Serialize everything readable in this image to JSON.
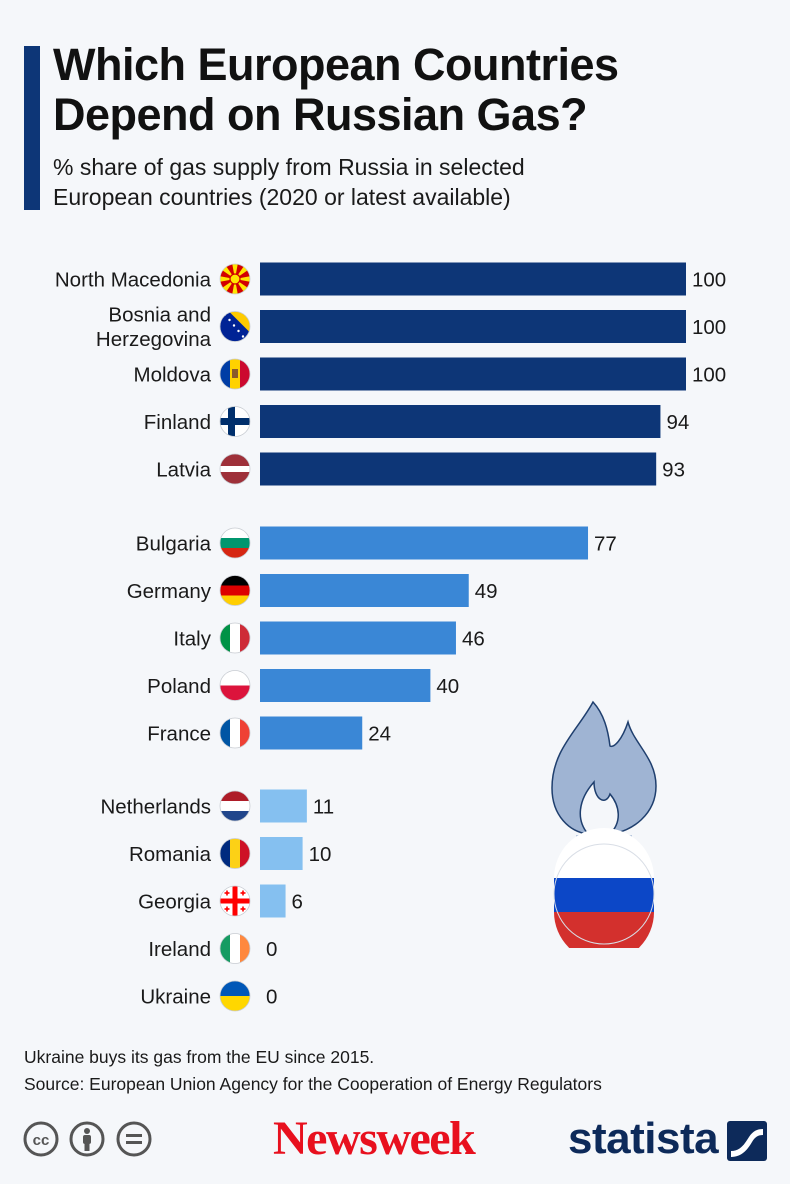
{
  "header": {
    "title": "Which European Countries Depend on Russian Gas?",
    "subtitle": "% share of gas supply from Russia in selected European countries (2020 or latest available)"
  },
  "chart_data": {
    "type": "bar",
    "orientation": "horizontal",
    "title": "Which European Countries Depend on Russian Gas?",
    "subtitle": "% share of gas supply from Russia in selected European countries (2020 or latest available)",
    "xlim": [
      0,
      100
    ],
    "grid": false,
    "legend": "none",
    "groups": [
      {
        "color": "#0d3677",
        "bars": [
          {
            "label": "North Macedonia",
            "value": 100,
            "flag": "north-macedonia-flag"
          },
          {
            "label": "Bosnia and Herzegovina",
            "lines": [
              "Bosnia and",
              "Herzegovina"
            ],
            "value": 100,
            "flag": "bosnia-flag"
          },
          {
            "label": "Moldova",
            "value": 100,
            "flag": "moldova-flag"
          },
          {
            "label": "Finland",
            "value": 94,
            "flag": "finland-flag"
          },
          {
            "label": "Latvia",
            "value": 93,
            "flag": "latvia-flag"
          }
        ]
      },
      {
        "color": "#3a87d6",
        "bars": [
          {
            "label": "Bulgaria",
            "value": 77,
            "flag": "bulgaria-flag"
          },
          {
            "label": "Germany",
            "value": 49,
            "flag": "germany-flag"
          },
          {
            "label": "Italy",
            "value": 46,
            "flag": "italy-flag"
          },
          {
            "label": "Poland",
            "value": 40,
            "flag": "poland-flag"
          },
          {
            "label": "France",
            "value": 24,
            "flag": "france-flag"
          }
        ]
      },
      {
        "color": "#85c0f0",
        "bars": [
          {
            "label": "Netherlands",
            "value": 11,
            "flag": "netherlands-flag"
          },
          {
            "label": "Romania",
            "value": 10,
            "flag": "romania-flag"
          },
          {
            "label": "Georgia",
            "value": 6,
            "flag": "georgia-flag"
          },
          {
            "label": "Ireland",
            "value": 0,
            "flag": "ireland-flag"
          },
          {
            "label": "Ukraine",
            "value": 0,
            "flag": "ukraine-flag"
          }
        ]
      }
    ]
  },
  "illustration": {
    "icon": "gas-flame-russia-icon",
    "colors": {
      "flame": "#9fb4d3",
      "white": "#ffffff",
      "blue": "#0c47c7",
      "red": "#d3302d"
    }
  },
  "footer": {
    "note": "Ukraine buys its gas from the EU since 2015.",
    "source": "Source: European Union Agency for the Cooperation of Energy Regulators",
    "license_icons": [
      "cc-icon",
      "attribution-icon",
      "no-derivatives-icon"
    ],
    "publisher": "Newsweek",
    "brand": "statista"
  },
  "colors": {
    "title_bar": "#0d3677",
    "background": "#f5f7fa",
    "newsweek_red": "#e8101e",
    "statista_navy": "#0d2a5a"
  }
}
